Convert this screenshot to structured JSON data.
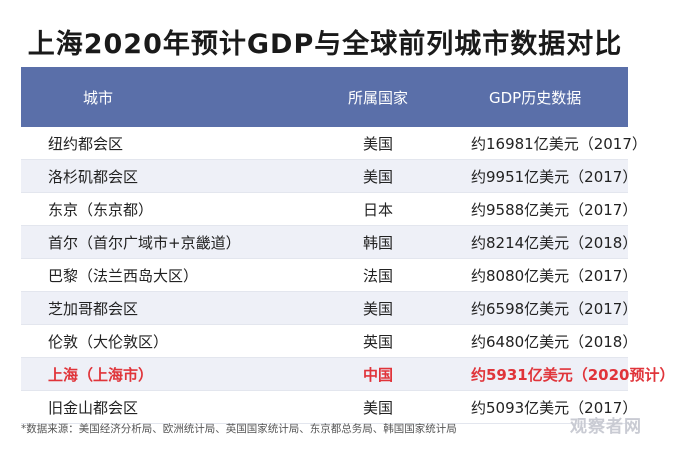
{
  "title": "上海2020年预计GDP与全球前列城市数据对比",
  "chart_data": {
    "type": "table",
    "columns": [
      "城市",
      "所属国家",
      "GDP历史数据"
    ],
    "rows": [
      {
        "city": "纽约都会区",
        "country": "美国",
        "gdp": "约16981亿美元（2017）",
        "highlight": false
      },
      {
        "city": "洛杉矶都会区",
        "country": "美国",
        "gdp": "约9951亿美元（2017）",
        "highlight": false
      },
      {
        "city": "东京（东京都）",
        "country": "日本",
        "gdp": "约9588亿美元（2017）",
        "highlight": false
      },
      {
        "city": "首尔（首尔广域市+京畿道）",
        "country": "韩国",
        "gdp": "约8214亿美元（2018）",
        "highlight": false
      },
      {
        "city": "巴黎（法兰西岛大区）",
        "country": "法国",
        "gdp": "约8080亿美元（2017）",
        "highlight": false
      },
      {
        "city": "芝加哥都会区",
        "country": "美国",
        "gdp": "约6598亿美元（2017）",
        "highlight": false
      },
      {
        "city": "伦敦（大伦敦区）",
        "country": "英国",
        "gdp": "约6480亿美元（2018）",
        "highlight": false
      },
      {
        "city": "上海（上海市）",
        "country": "中国",
        "gdp": "约5931亿美元（2020预计）",
        "highlight": true
      },
      {
        "city": "旧金山都会区",
        "country": "美国",
        "gdp": "约5093亿美元（2017）",
        "highlight": false
      }
    ],
    "colors": {
      "header": "#5a6fa9",
      "highlight": "#e0343a",
      "stripe": "#eef0f7"
    }
  },
  "source": "*数据来源：美国经济分析局、欧洲统计局、英国国家统计局、东京都总务局、韩国国家统计局",
  "watermark": "观察者网"
}
